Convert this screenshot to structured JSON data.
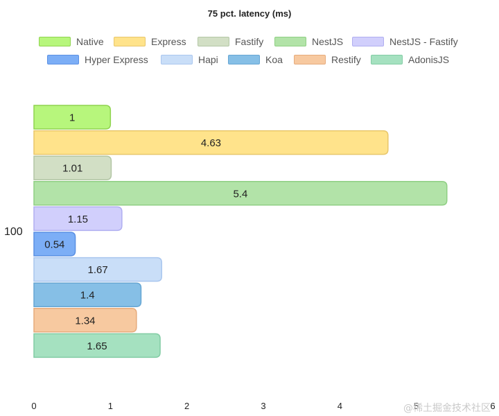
{
  "chart_data": {
    "type": "bar",
    "orientation": "horizontal",
    "title": "75 pct. latency (ms)",
    "categories": [
      "100"
    ],
    "series": [
      {
        "name": "Native",
        "values": [
          1
        ],
        "color": "#b7f67c",
        "border": "#8fd34f"
      },
      {
        "name": "Express",
        "values": [
          4.63
        ],
        "color": "#ffe38b",
        "border": "#e8c66a"
      },
      {
        "name": "Fastify",
        "values": [
          1.01
        ],
        "color": "#d2dfc5",
        "border": "#b3c6a5"
      },
      {
        "name": "NestJS",
        "values": [
          5.4
        ],
        "color": "#b2e3a8",
        "border": "#8fcf83"
      },
      {
        "name": "NestJS - Fastify",
        "values": [
          1.15
        ],
        "color": "#d1cffc",
        "border": "#b0aef0"
      },
      {
        "name": "Hyper Express",
        "values": [
          0.54
        ],
        "color": "#7caef6",
        "border": "#5b90e3"
      },
      {
        "name": "Hapi",
        "values": [
          1.67
        ],
        "color": "#c9def8",
        "border": "#a9c6ee"
      },
      {
        "name": "Koa",
        "values": [
          1.4
        ],
        "color": "#86bfe6",
        "border": "#66a6d3"
      },
      {
        "name": "Restify",
        "values": [
          1.34
        ],
        "color": "#f7c9a0",
        "border": "#e6ab7c"
      },
      {
        "name": "AdonisJS",
        "values": [
          1.65
        ],
        "color": "#a5e1c0",
        "border": "#82cca4"
      }
    ],
    "xlim": [
      0,
      6
    ],
    "xticks": [
      "0",
      "1",
      "2",
      "3",
      "4",
      "5",
      "6"
    ],
    "xlabel": "",
    "ylabel": "",
    "grid": false,
    "legend_position": "top"
  },
  "watermark": "@稀土掘金技术社区"
}
